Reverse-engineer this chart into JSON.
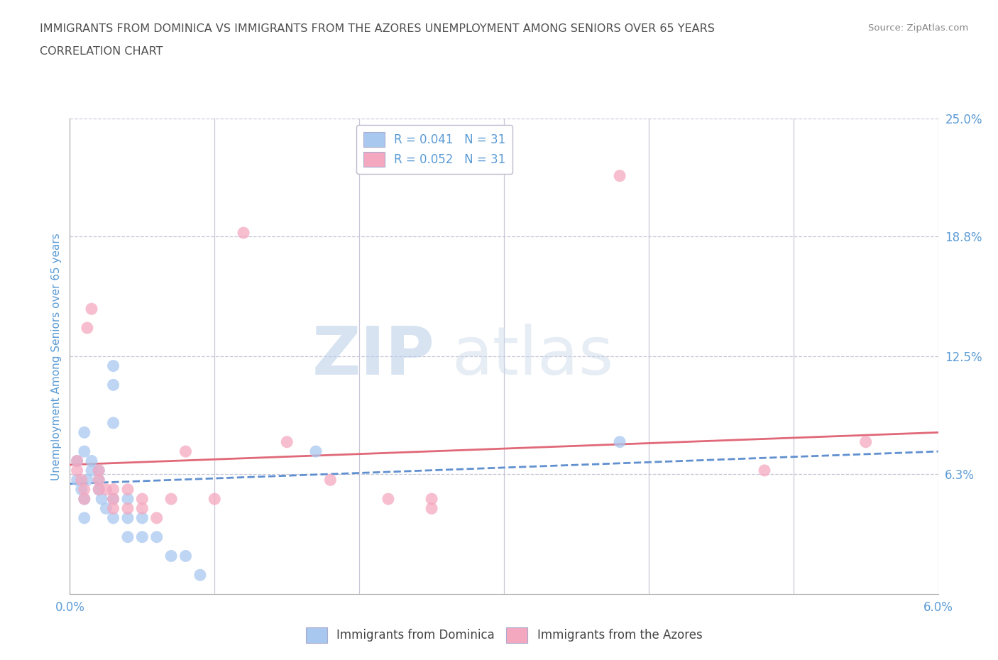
{
  "title_line1": "IMMIGRANTS FROM DOMINICA VS IMMIGRANTS FROM THE AZORES UNEMPLOYMENT AMONG SENIORS OVER 65 YEARS",
  "title_line2": "CORRELATION CHART",
  "source": "Source: ZipAtlas.com",
  "ylabel": "Unemployment Among Seniors over 65 years",
  "xlim": [
    0.0,
    0.06
  ],
  "ylim": [
    0.0,
    0.25
  ],
  "xticks": [
    0.0,
    0.01,
    0.02,
    0.03,
    0.04,
    0.05,
    0.06
  ],
  "xticklabels": [
    "0.0%",
    "",
    "",
    "",
    "",
    "",
    "6.0%"
  ],
  "ytick_right_vals": [
    0.0,
    0.063,
    0.125,
    0.188,
    0.25
  ],
  "ytick_right_labels": [
    "",
    "6.3%",
    "12.5%",
    "18.8%",
    "25.0%"
  ],
  "watermark_zip": "ZIP",
  "watermark_atlas": "atlas",
  "legend_entry1_label": "R = 0.041   N = 31",
  "legend_entry2_label": "R = 0.052   N = 31",
  "dominica_color": "#a8c8f0",
  "azores_color": "#f4a8c0",
  "dominica_line_color": "#6090d0",
  "azores_line_color": "#e06878",
  "grid_color": "#c8c8d8",
  "title_color": "#505050",
  "axis_label_color": "#5b9bd5",
  "source_color": "#888888",
  "dominica_x": [
    0.0005,
    0.0005,
    0.0008,
    0.001,
    0.001,
    0.001,
    0.001,
    0.0012,
    0.0015,
    0.0015,
    0.002,
    0.002,
    0.002,
    0.0022,
    0.0025,
    0.003,
    0.003,
    0.003,
    0.003,
    0.003,
    0.004,
    0.004,
    0.004,
    0.005,
    0.005,
    0.006,
    0.007,
    0.008,
    0.009,
    0.017,
    0.038
  ],
  "dominica_y": [
    0.07,
    0.06,
    0.055,
    0.04,
    0.05,
    0.075,
    0.085,
    0.06,
    0.065,
    0.07,
    0.06,
    0.065,
    0.055,
    0.05,
    0.045,
    0.12,
    0.11,
    0.09,
    0.05,
    0.04,
    0.05,
    0.04,
    0.03,
    0.04,
    0.03,
    0.03,
    0.02,
    0.02,
    0.01,
    0.075,
    0.08
  ],
  "azores_x": [
    0.0005,
    0.0005,
    0.0008,
    0.001,
    0.001,
    0.0012,
    0.0015,
    0.002,
    0.002,
    0.002,
    0.0025,
    0.003,
    0.003,
    0.003,
    0.004,
    0.004,
    0.005,
    0.005,
    0.006,
    0.007,
    0.008,
    0.01,
    0.012,
    0.015,
    0.018,
    0.022,
    0.025,
    0.025,
    0.038,
    0.048,
    0.055
  ],
  "azores_y": [
    0.07,
    0.065,
    0.06,
    0.055,
    0.05,
    0.14,
    0.15,
    0.055,
    0.06,
    0.065,
    0.055,
    0.055,
    0.05,
    0.045,
    0.055,
    0.045,
    0.05,
    0.045,
    0.04,
    0.05,
    0.075,
    0.05,
    0.19,
    0.08,
    0.06,
    0.05,
    0.045,
    0.05,
    0.22,
    0.065,
    0.08
  ],
  "dom_trend_x0": 0.0,
  "dom_trend_y0": 0.058,
  "dom_trend_x1": 0.06,
  "dom_trend_y1": 0.075,
  "az_trend_x0": 0.0,
  "az_trend_y0": 0.068,
  "az_trend_x1": 0.06,
  "az_trend_y1": 0.085
}
